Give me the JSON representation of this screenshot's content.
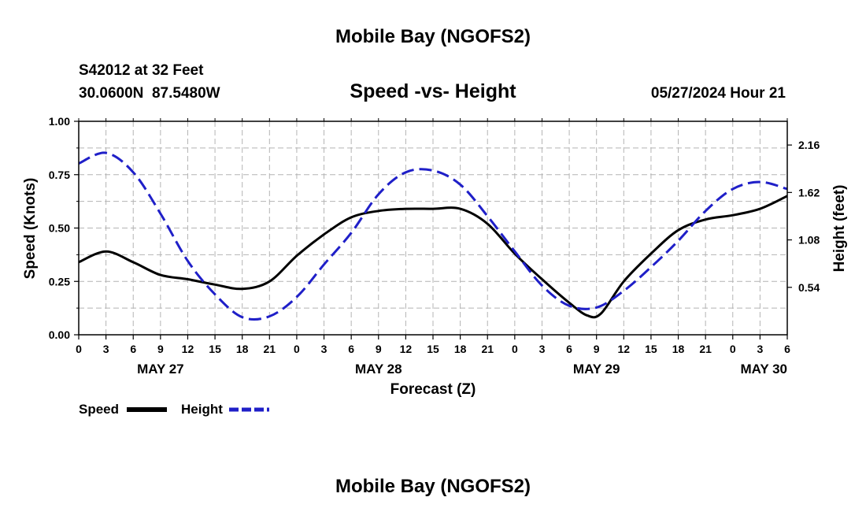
{
  "page": {
    "title_top": "Mobile Bay (NGOFS2)",
    "title_bottom": "Mobile Bay (NGOFS2)"
  },
  "header": {
    "station": "S42012 at 32 Feet",
    "coords": "30.0600N  87.5480W",
    "chart_title": "Speed -vs- Height",
    "datetime": "05/27/2024 Hour 21"
  },
  "legend": {
    "speed_label": "Speed",
    "height_label": "Height"
  },
  "colors": {
    "speed": "#000000",
    "height": "#1f1fc8",
    "grid": "#b4b4b4"
  },
  "chart_data": {
    "type": "line",
    "title": "Speed -vs- Height",
    "xlabel": "Forecast (Z)",
    "ylabel": "Speed (Knots)",
    "y2label": "Height (feet)",
    "x_range_hours": [
      0,
      78
    ],
    "x_tick_step_hours": 3,
    "x_tick_labels": [
      "0",
      "3",
      "6",
      "9",
      "12",
      "15",
      "18",
      "21",
      "0",
      "3",
      "6",
      "9",
      "12",
      "15",
      "18",
      "21",
      "0",
      "3",
      "6",
      "9",
      "12",
      "15",
      "18",
      "21",
      "0",
      "3",
      "6"
    ],
    "day_labels": [
      {
        "hour": 9,
        "label": "MAY 27"
      },
      {
        "hour": 33,
        "label": "MAY 28"
      },
      {
        "hour": 57,
        "label": "MAY 29"
      },
      {
        "hour": 78,
        "label": "MAY 30"
      }
    ],
    "ylim": [
      0,
      1.0
    ],
    "y_ticks": [
      0.0,
      0.25,
      0.5,
      0.75,
      1.0
    ],
    "y_tick_labels": [
      "0.00",
      "0.25",
      "0.50",
      "0.75",
      "1.00"
    ],
    "y2lim": [
      0.0,
      2.43
    ],
    "y2_ticks": [
      0.54,
      1.08,
      1.62,
      2.16
    ],
    "y2_tick_labels": [
      "0.54",
      "1.08",
      "1.62",
      "2.16"
    ],
    "grid": true,
    "series": [
      {
        "name": "Speed",
        "axis": "left",
        "style": "solid",
        "x": [
          0,
          3,
          6,
          9,
          12,
          15,
          18,
          21,
          24,
          27,
          30,
          33,
          36,
          39,
          42,
          45,
          48,
          51,
          54,
          56,
          57.5,
          60,
          63,
          66,
          69,
          72,
          75,
          78
        ],
        "values": [
          0.34,
          0.39,
          0.34,
          0.28,
          0.26,
          0.235,
          0.215,
          0.25,
          0.37,
          0.47,
          0.55,
          0.58,
          0.59,
          0.59,
          0.59,
          0.52,
          0.38,
          0.26,
          0.15,
          0.09,
          0.1,
          0.25,
          0.38,
          0.49,
          0.54,
          0.56,
          0.59,
          0.65
        ]
      },
      {
        "name": "Height",
        "axis": "right",
        "style": "dashed",
        "x": [
          0,
          3,
          6,
          9,
          12,
          15,
          18,
          21,
          24,
          27,
          30,
          33,
          36,
          39,
          42,
          45,
          48,
          51,
          54,
          57,
          60,
          63,
          66,
          69,
          72,
          75,
          78
        ],
        "values": [
          1.95,
          2.07,
          1.85,
          1.38,
          0.84,
          0.46,
          0.2,
          0.21,
          0.43,
          0.8,
          1.16,
          1.6,
          1.85,
          1.87,
          1.71,
          1.35,
          0.95,
          0.56,
          0.33,
          0.31,
          0.5,
          0.77,
          1.07,
          1.41,
          1.66,
          1.74,
          1.66
        ]
      }
    ]
  }
}
